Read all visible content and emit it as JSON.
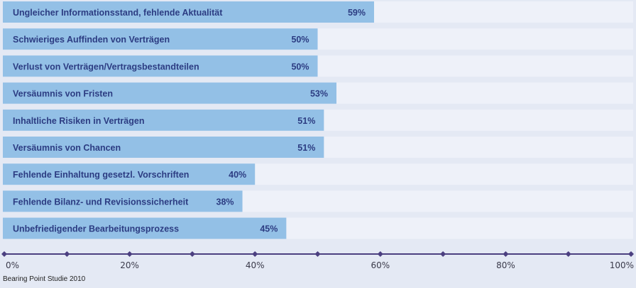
{
  "chart_data": {
    "type": "bar",
    "orientation": "horizontal",
    "categories": [
      "Ungleicher Informationsstand, fehlende Aktualität",
      "Schwieriges Auffinden von Verträgen",
      "Verlust von Verträgen/Vertragsbestandteilen",
      "Versäumnis von Fristen",
      "Inhaltliche Risiken in Verträgen",
      "Versäumnis von Chancen",
      "Fehlende Einhaltung gesetzl. Vorschriften",
      "Fehlende Bilanz- und Revisionssicherheit",
      "Unbefriedigender Bearbeitungsprozess"
    ],
    "values": [
      59,
      50,
      50,
      53,
      51,
      51,
      40,
      38,
      45
    ],
    "value_labels": [
      "59%",
      "50%",
      "50%",
      "53%",
      "51%",
      "51%",
      "40%",
      "38%",
      "45%"
    ],
    "xlim": [
      0,
      100
    ],
    "tick_labels": [
      "0%",
      "20%",
      "40%",
      "60%",
      "80%",
      "100%"
    ],
    "bar_color": "#93c0e6",
    "track_color": "#eef1f9",
    "axis_color": "#4b3f80"
  },
  "source": "Bearing Point Studie 2010"
}
